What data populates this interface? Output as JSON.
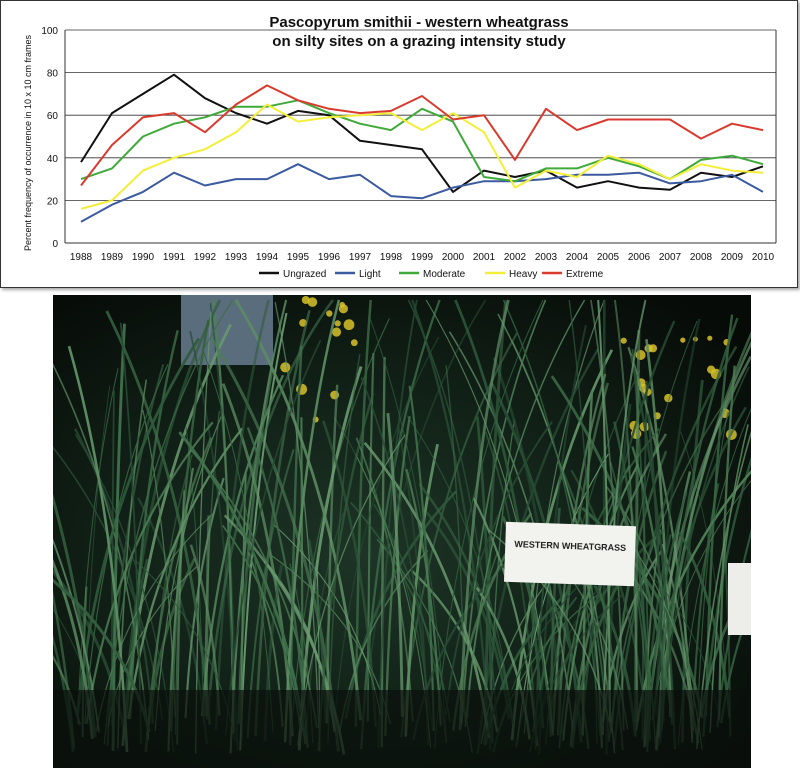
{
  "chart_data": {
    "type": "line",
    "title": [
      "Pascopyrum smithii  -  western wheatgrass",
      "on silty sites on a grazing intensity study"
    ],
    "xlabel": "",
    "ylabel": "Percent frequency of occurrence in 10 x 10 cm frames",
    "ylim": [
      0,
      100
    ],
    "yticks": [
      0,
      20,
      40,
      60,
      80,
      100
    ],
    "grid": "horizontal",
    "legend_position": "bottom",
    "x": [
      "1988",
      "1989",
      "1990",
      "1991",
      "1992",
      "1993",
      "1994",
      "1995",
      "1996",
      "1997",
      "1998",
      "1999",
      "2000",
      "2001",
      "2002",
      "2003",
      "2004",
      "2005",
      "2006",
      "2007",
      "2008",
      "2009",
      "2010"
    ],
    "series": [
      {
        "name": "Ungrazed",
        "color": "#111111",
        "values": [
          38,
          61,
          70,
          79,
          68,
          61,
          56,
          62,
          60,
          48,
          46,
          44,
          24,
          34,
          31,
          34,
          26,
          29,
          26,
          25,
          33,
          31,
          36
        ]
      },
      {
        "name": "Light",
        "color": "#3b5aa0",
        "values": [
          10,
          18,
          24,
          33,
          27,
          30,
          30,
          37,
          30,
          32,
          22,
          21,
          26,
          29,
          29,
          30,
          32,
          32,
          33,
          28,
          29,
          32,
          24
        ]
      },
      {
        "name": "Moderate",
        "color": "#3faa3a",
        "values": [
          30,
          35,
          50,
          56,
          59,
          64,
          64,
          67,
          61,
          56,
          53,
          63,
          57,
          31,
          29,
          35,
          35,
          40,
          36,
          30,
          39,
          41,
          37
        ]
      },
      {
        "name": "Heavy",
        "color": "#f2ee3a",
        "values": [
          16,
          20,
          34,
          40,
          44,
          52,
          65,
          57,
          59,
          60,
          61,
          53,
          61,
          52,
          26,
          34,
          31,
          41,
          37,
          30,
          37,
          34,
          33
        ]
      },
      {
        "name": "Extreme",
        "color": "#d93a2e",
        "values": [
          27,
          46,
          59,
          61,
          52,
          65,
          74,
          67,
          63,
          61,
          62,
          69,
          58,
          60,
          39,
          63,
          53,
          58,
          58,
          58,
          49,
          56,
          53
        ]
      }
    ]
  },
  "photo": {
    "sign_text": "WESTERN WHEATGRASS"
  },
  "colors": {
    "grid": "#333333",
    "photo_background": "#0c140e"
  }
}
